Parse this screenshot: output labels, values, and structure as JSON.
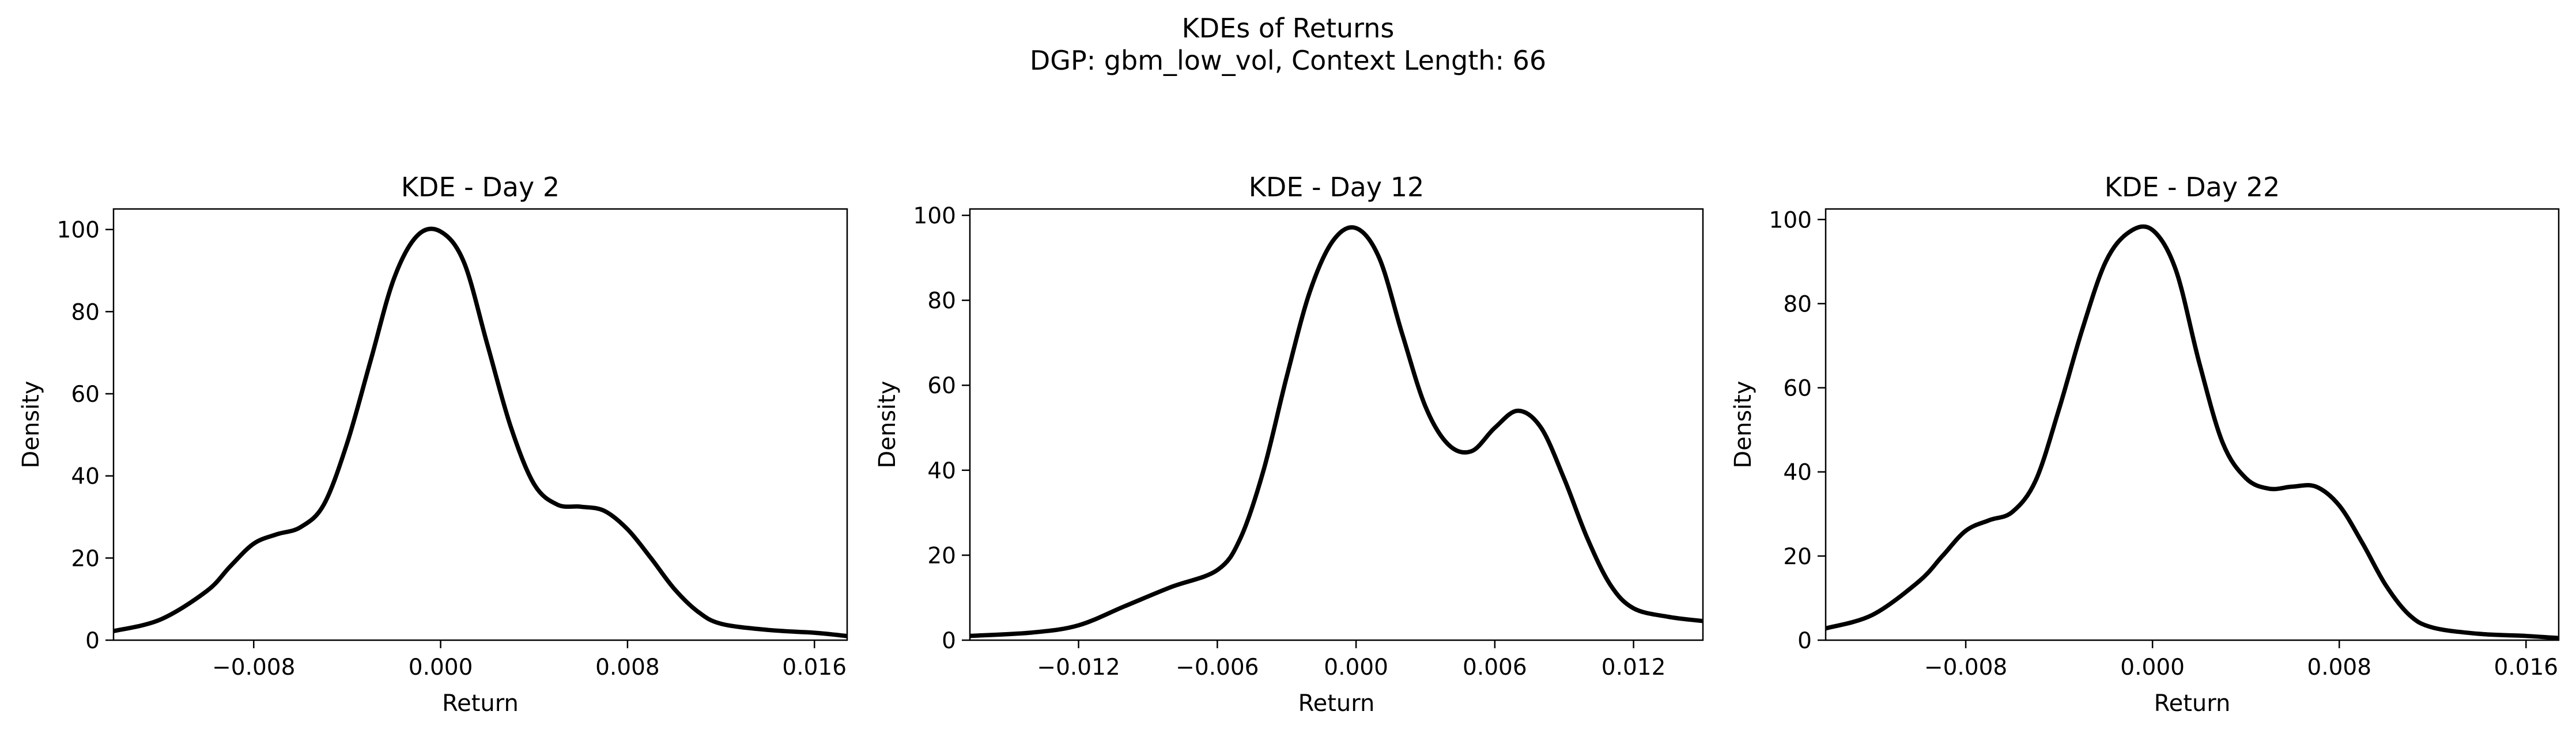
{
  "figure": {
    "title_line1": "KDEs of Returns",
    "title_line2": "DGP: gbm_low_vol, Context Length: 66"
  },
  "chart_data": [
    {
      "type": "line",
      "title": "KDE - Day 2",
      "xlabel": "Return",
      "ylabel": "Density",
      "xlim": [
        -0.014,
        0.0174
      ],
      "ylim": [
        0,
        105
      ],
      "xticks": [
        -0.008,
        0.0,
        0.008,
        0.016
      ],
      "xtick_labels": [
        "−0.008",
        "0.000",
        "0.008",
        "0.016"
      ],
      "yticks": [
        0,
        20,
        40,
        60,
        80,
        100
      ],
      "ytick_labels": [
        "0",
        "20",
        "40",
        "60",
        "80",
        "100"
      ],
      "series": [
        {
          "color": "#000000",
          "x": [
            -0.014,
            -0.012,
            -0.01,
            -0.009,
            -0.008,
            -0.007,
            -0.006,
            -0.005,
            -0.004,
            -0.003,
            -0.002,
            -0.001,
            0.0,
            0.001,
            0.002,
            0.003,
            0.004,
            0.005,
            0.006,
            0.007,
            0.008,
            0.009,
            0.01,
            0.011,
            0.012,
            0.014,
            0.016,
            0.0174
          ],
          "y": [
            2.2,
            5.0,
            12.0,
            18.0,
            23.5,
            25.8,
            27.5,
            33.0,
            48.0,
            68.0,
            88.0,
            98.5,
            99.5,
            92.0,
            72.0,
            52.0,
            38.0,
            33.0,
            32.5,
            31.5,
            27.0,
            20.0,
            12.5,
            7.0,
            4.0,
            2.5,
            1.8,
            1.0
          ]
        }
      ]
    },
    {
      "type": "line",
      "title": "KDE - Day 12",
      "xlabel": "Return",
      "ylabel": "Density",
      "xlim": [
        -0.0167,
        0.015
      ],
      "ylim": [
        0,
        101.5
      ],
      "xticks": [
        -0.012,
        -0.006,
        0.0,
        0.006,
        0.012
      ],
      "xtick_labels": [
        "−0.012",
        "−0.006",
        "0.000",
        "0.006",
        "0.012"
      ],
      "yticks": [
        0,
        20,
        40,
        60,
        80,
        100
      ],
      "ytick_labels": [
        "0",
        "20",
        "40",
        "60",
        "80",
        "100"
      ],
      "series": [
        {
          "color": "#000000",
          "x": [
            -0.0167,
            -0.014,
            -0.012,
            -0.01,
            -0.008,
            -0.006,
            -0.005,
            -0.004,
            -0.003,
            -0.002,
            -0.001,
            0.0,
            0.001,
            0.002,
            0.003,
            0.004,
            0.005,
            0.006,
            0.007,
            0.008,
            0.009,
            0.01,
            0.011,
            0.012,
            0.0135,
            0.015
          ],
          "y": [
            1.0,
            1.8,
            3.5,
            8.0,
            12.5,
            16.5,
            24.0,
            40.0,
            62.0,
            82.0,
            94.0,
            97.0,
            90.0,
            72.0,
            55.0,
            46.0,
            44.5,
            50.0,
            54.0,
            50.0,
            38.0,
            24.0,
            13.0,
            7.5,
            5.5,
            4.5
          ]
        }
      ]
    },
    {
      "type": "line",
      "title": "KDE - Day 22",
      "xlabel": "Return",
      "ylabel": "Density",
      "xlim": [
        -0.014,
        0.0174
      ],
      "ylim": [
        0,
        102.5
      ],
      "xticks": [
        -0.008,
        0.0,
        0.008,
        0.016
      ],
      "xtick_labels": [
        "−0.008",
        "0.000",
        "0.008",
        "0.016"
      ],
      "yticks": [
        0,
        20,
        40,
        60,
        80,
        100
      ],
      "ytick_labels": [
        "0",
        "20",
        "40",
        "60",
        "80",
        "100"
      ],
      "series": [
        {
          "color": "#000000",
          "x": [
            -0.014,
            -0.012,
            -0.01,
            -0.009,
            -0.008,
            -0.007,
            -0.006,
            -0.005,
            -0.004,
            -0.003,
            -0.002,
            -0.001,
            0.0,
            0.001,
            0.002,
            0.003,
            0.004,
            0.005,
            0.006,
            0.007,
            0.008,
            0.009,
            0.01,
            0.011,
            0.012,
            0.014,
            0.016,
            0.0174
          ],
          "y": [
            2.8,
            6.0,
            14.0,
            20.0,
            26.0,
            28.5,
            30.5,
            38.0,
            55.0,
            74.0,
            90.0,
            97.0,
            97.5,
            88.0,
            66.0,
            47.0,
            38.5,
            36.0,
            36.5,
            36.5,
            32.0,
            23.0,
            13.0,
            6.0,
            3.0,
            1.5,
            1.0,
            0.5
          ]
        }
      ]
    }
  ]
}
